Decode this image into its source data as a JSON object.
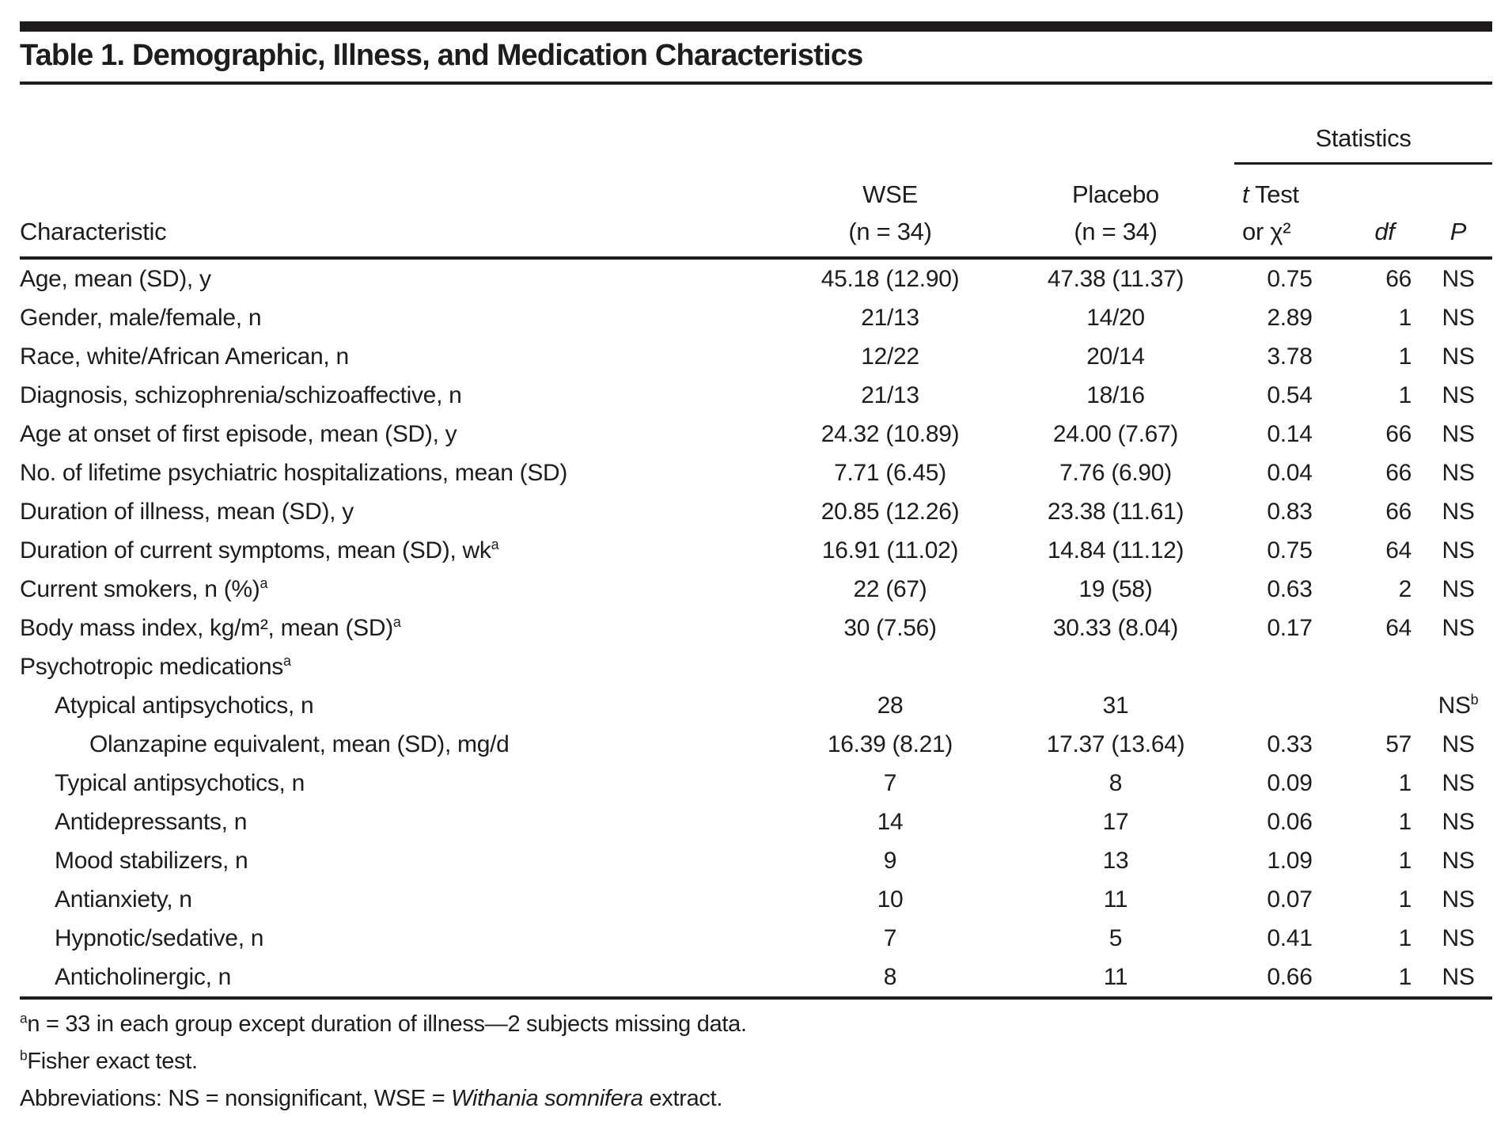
{
  "title": "Table 1. Demographic, Illness, and Medication Characteristics",
  "header": {
    "characteristic": "Characteristic",
    "statistics": "Statistics",
    "wse_line1": "WSE",
    "wse_line2": "(n = 34)",
    "placebo_line1": "Placebo",
    "placebo_line2": "(n = 34)",
    "ttest_italic": "t",
    "ttest_rest": " Test",
    "ttest_line2": "or χ²",
    "df": "df",
    "p": "P"
  },
  "rows": [
    {
      "label": "Age, mean (SD), y",
      "indent": 0,
      "label_sup": "",
      "wse": "45.18 (12.90)",
      "placebo": "47.38 (11.37)",
      "stat": "0.75",
      "df": "66",
      "p": "NS",
      "p_sup": ""
    },
    {
      "label": "Gender, male/female, n",
      "indent": 0,
      "label_sup": "",
      "wse": "21/13",
      "placebo": "14/20",
      "stat": "2.89",
      "df": "1",
      "p": "NS",
      "p_sup": ""
    },
    {
      "label": "Race, white/African American, n",
      "indent": 0,
      "label_sup": "",
      "wse": "12/22",
      "placebo": "20/14",
      "stat": "3.78",
      "df": "1",
      "p": "NS",
      "p_sup": ""
    },
    {
      "label": "Diagnosis, schizophrenia/schizoaffective, n",
      "indent": 0,
      "label_sup": "",
      "wse": "21/13",
      "placebo": "18/16",
      "stat": "0.54",
      "df": "1",
      "p": "NS",
      "p_sup": ""
    },
    {
      "label": "Age at onset of first episode, mean (SD), y",
      "indent": 0,
      "label_sup": "",
      "wse": "24.32 (10.89)",
      "placebo": "24.00 (7.67)",
      "stat": "0.14",
      "df": "66",
      "p": "NS",
      "p_sup": ""
    },
    {
      "label": "No. of lifetime psychiatric hospitalizations, mean (SD)",
      "indent": 0,
      "label_sup": "",
      "wse": "7.71 (6.45)",
      "placebo": "7.76 (6.90)",
      "stat": "0.04",
      "df": "66",
      "p": "NS",
      "p_sup": ""
    },
    {
      "label": "Duration of illness, mean (SD), y",
      "indent": 0,
      "label_sup": "",
      "wse": "20.85 (12.26)",
      "placebo": "23.38 (11.61)",
      "stat": "0.83",
      "df": "66",
      "p": "NS",
      "p_sup": ""
    },
    {
      "label": "Duration of current symptoms, mean (SD), wk",
      "indent": 0,
      "label_sup": "a",
      "wse": "16.91 (11.02)",
      "placebo": "14.84 (11.12)",
      "stat": "0.75",
      "df": "64",
      "p": "NS",
      "p_sup": ""
    },
    {
      "label": "Current smokers, n (%)",
      "indent": 0,
      "label_sup": "a",
      "wse": "22 (67)",
      "placebo": "19 (58)",
      "stat": "0.63",
      "df": "2",
      "p": "NS",
      "p_sup": ""
    },
    {
      "label": "Body mass index, kg/m², mean (SD)",
      "indent": 0,
      "label_sup": "a",
      "wse": "30 (7.56)",
      "placebo": "30.33 (8.04)",
      "stat": "0.17",
      "df": "64",
      "p": "NS",
      "p_sup": ""
    },
    {
      "label": "Psychotropic medications",
      "indent": 0,
      "label_sup": "a",
      "wse": "",
      "placebo": "",
      "stat": "",
      "df": "",
      "p": "",
      "p_sup": ""
    },
    {
      "label": "Atypical antipsychotics, n",
      "indent": 1,
      "label_sup": "",
      "wse": "28",
      "placebo": "31",
      "stat": "",
      "df": "",
      "p": "NS",
      "p_sup": "b"
    },
    {
      "label": "Olanzapine equivalent, mean (SD), mg/d",
      "indent": 2,
      "label_sup": "",
      "wse": "16.39 (8.21)",
      "placebo": "17.37 (13.64)",
      "stat": "0.33",
      "df": "57",
      "p": "NS",
      "p_sup": ""
    },
    {
      "label": "Typical antipsychotics, n",
      "indent": 1,
      "label_sup": "",
      "wse": "7",
      "placebo": "8",
      "stat": "0.09",
      "df": "1",
      "p": "NS",
      "p_sup": ""
    },
    {
      "label": "Antidepressants, n",
      "indent": 1,
      "label_sup": "",
      "wse": "14",
      "placebo": "17",
      "stat": "0.06",
      "df": "1",
      "p": "NS",
      "p_sup": ""
    },
    {
      "label": "Mood stabilizers, n",
      "indent": 1,
      "label_sup": "",
      "wse": "9",
      "placebo": "13",
      "stat": "1.09",
      "df": "1",
      "p": "NS",
      "p_sup": ""
    },
    {
      "label": "Antianxiety, n",
      "indent": 1,
      "label_sup": "",
      "wse": "10",
      "placebo": "11",
      "stat": "0.07",
      "df": "1",
      "p": "NS",
      "p_sup": ""
    },
    {
      "label": "Hypnotic/sedative, n",
      "indent": 1,
      "label_sup": "",
      "wse": "7",
      "placebo": "5",
      "stat": "0.41",
      "df": "1",
      "p": "NS",
      "p_sup": ""
    },
    {
      "label": "Anticholinergic, n",
      "indent": 1,
      "label_sup": "",
      "wse": "8",
      "placebo": "11",
      "stat": "0.66",
      "df": "1",
      "p": "NS",
      "p_sup": ""
    }
  ],
  "footnotes": {
    "a": {
      "marker": "a",
      "text": "n = 33 in each group except duration of illness—2 subjects missing data."
    },
    "b": {
      "marker": "b",
      "text": "Fisher exact test."
    },
    "abbrev": {
      "pre": "Abbreviations: NS = nonsignificant, WSE = ",
      "italic": "Withania somnifera",
      "post": " extract."
    }
  }
}
